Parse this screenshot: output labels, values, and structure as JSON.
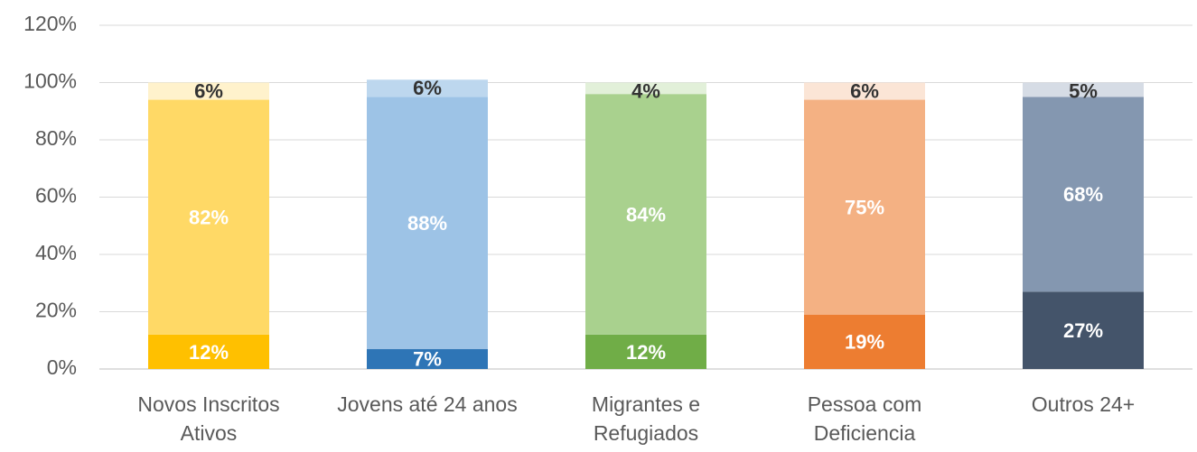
{
  "chart_data": {
    "type": "stacked_bar",
    "categories": [
      "Novos Inscritos Ativos",
      "Jovens até 24 anos",
      "Migrantes e Refugiados",
      "Pessoa com Deficiencia",
      "Outros 24+"
    ],
    "series": [
      {
        "colors": [
          "#FFC000",
          "#2E75B6",
          "#70AD47",
          "#ED7D31",
          "#44546A"
        ],
        "values": [
          12,
          7,
          12,
          19,
          27
        ],
        "value_labels": [
          "12%",
          "7%",
          "12%",
          "19%",
          "27%"
        ]
      },
      {
        "colors": [
          "#FFD966",
          "#9DC3E6",
          "#A9D18E",
          "#F4B183",
          "#8497B0"
        ],
        "values": [
          82,
          88,
          84,
          75,
          68
        ],
        "value_labels": [
          "82%",
          "88%",
          "84%",
          "75%",
          "68%"
        ]
      },
      {
        "colors": [
          "#FFF2CC",
          "#BDD7EE",
          "#E2F0D9",
          "#FBE5D6",
          "#D6DCE5"
        ],
        "values": [
          6,
          6,
          4,
          6,
          5
        ],
        "value_labels": [
          "6%",
          "6%",
          "4%",
          "6%",
          "5%"
        ]
      }
    ],
    "ylim": [
      0,
      120
    ],
    "yticks": [
      {
        "value": 0,
        "label": "0%"
      },
      {
        "value": 20,
        "label": "20%"
      },
      {
        "value": 40,
        "label": "40%"
      },
      {
        "value": 60,
        "label": "60%"
      },
      {
        "value": 80,
        "label": "80%"
      },
      {
        "value": 100,
        "label": "100%"
      },
      {
        "value": 120,
        "label": "120%"
      }
    ],
    "grid": true
  }
}
